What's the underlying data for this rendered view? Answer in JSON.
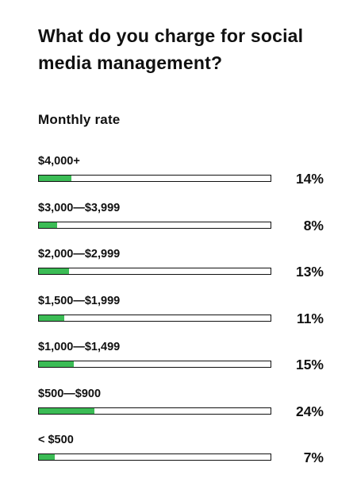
{
  "chart_data": {
    "type": "bar",
    "title": "What do you charge for social media management?",
    "subtitle": "Monthly rate",
    "categories": [
      "$4,000+",
      "$3,000—$3,999",
      "$2,000—$2,999",
      "$1,500—$1,999",
      "$1,000—$1,499",
      "$500—$900",
      "< $500"
    ],
    "values": [
      14,
      8,
      13,
      11,
      15,
      24,
      7
    ],
    "value_labels": [
      "14%",
      "8%",
      "13%",
      "11%",
      "15%",
      "24%",
      "7%"
    ],
    "unit": "%",
    "ylim": [
      0,
      100
    ],
    "orientation": "horizontal",
    "grid": false,
    "colors": {
      "bar": "#3bbc55",
      "track_border": "#111111",
      "text": "#111111"
    }
  }
}
